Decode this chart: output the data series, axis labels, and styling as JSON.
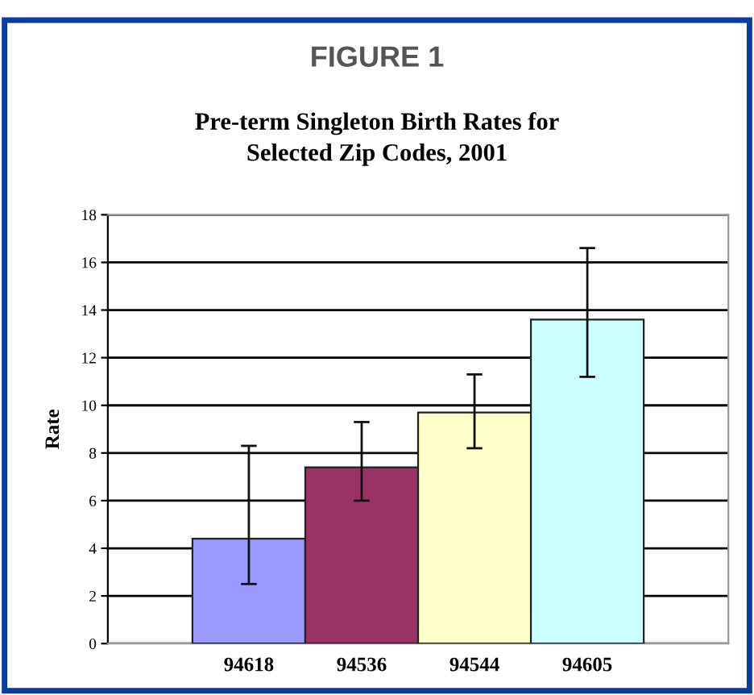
{
  "chart_data": {
    "type": "bar",
    "title": "FIGURE 1",
    "subtitle": "Pre-term Singleton Birth Rates for\nSelected Zip Codes, 2001",
    "ylabel": "Rate",
    "categories": [
      "94618",
      "94536",
      "94544",
      "94605"
    ],
    "values": [
      4.4,
      7.4,
      9.7,
      13.6
    ],
    "colors": [
      "#9999ff",
      "#993366",
      "#ffffcc",
      "#ccffff"
    ],
    "errors": [
      [
        2.5,
        8.3
      ],
      [
        6.0,
        9.3
      ],
      [
        8.2,
        11.3
      ],
      [
        11.2,
        16.6
      ]
    ],
    "ylim": [
      0,
      18
    ],
    "yticks": [
      0,
      2,
      4,
      6,
      8,
      10,
      12,
      14,
      16,
      18
    ],
    "grid": "y",
    "legend": false
  }
}
